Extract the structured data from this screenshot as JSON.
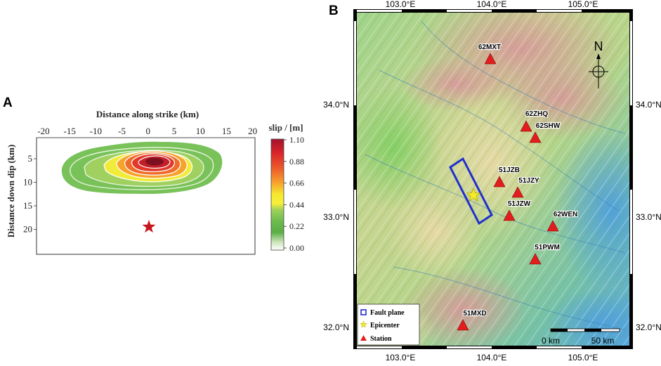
{
  "panel_a": {
    "label": "A",
    "x_axis_title": "Distance  along strike (km)",
    "y_axis_title": "Distance down dip (km)",
    "x_ticks": [
      "-20",
      "-15",
      "-10",
      "-5",
      "0",
      "5",
      "10",
      "15",
      "20"
    ],
    "y_ticks": [
      "5",
      "10",
      "15",
      "20"
    ],
    "colorbar_title": "slip / [m]",
    "colorbar_ticks": [
      "1.10",
      "0.88",
      "0.66",
      "0.44",
      "0.22",
      "0.00"
    ],
    "colorbar_colors": [
      "#a2122a",
      "#d8232a",
      "#ec5a2a",
      "#f79a2c",
      "#fbd52e",
      "#f6ef3a",
      "#b9dd5c",
      "#7dc555",
      "#5aae45",
      "#e2f0d3",
      "#ffffff"
    ],
    "epicenter_color": "#c4161c"
  },
  "panel_b": {
    "label": "B",
    "lon_ticks": [
      "103.0°E",
      "104.0°E",
      "105.0°E"
    ],
    "lat_ticks": [
      "34.0°N",
      "33.0°N",
      "32.0°N"
    ],
    "north_label": "N",
    "stations": [
      {
        "name": "62MXT"
      },
      {
        "name": "62ZHQ"
      },
      {
        "name": "62SHW"
      },
      {
        "name": "51JZB"
      },
      {
        "name": "51JZY"
      },
      {
        "name": "51JZW"
      },
      {
        "name": "62WEN"
      },
      {
        "name": "51PWM"
      },
      {
        "name": "51MXD"
      }
    ],
    "legend": {
      "fault_plane": "Fault plane",
      "epicenter": "Epicenter",
      "station": "Station"
    },
    "scale_bar": {
      "zero_label": "0 km",
      "end_label": "50 km"
    },
    "colors": {
      "fault_plane": "#1f2fd0",
      "epicenter_star": "#f3ec2a",
      "station_triangle": "#e31d1d"
    }
  }
}
